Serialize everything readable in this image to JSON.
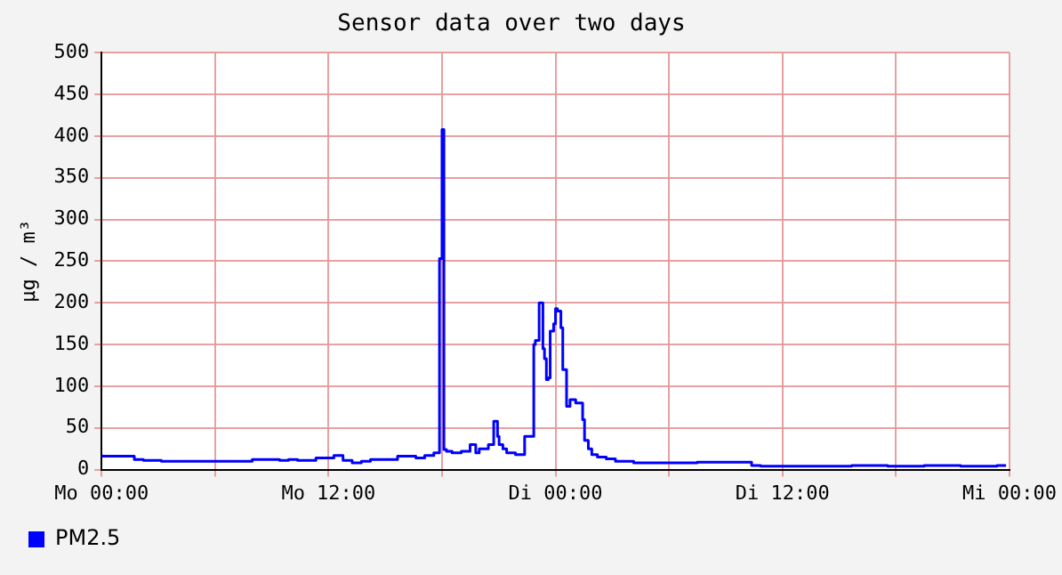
{
  "chart_data": {
    "type": "step",
    "title": "Sensor data over two days",
    "ylabel": "µg / m³",
    "xlim": [
      "--01-01T00:00",
      "--01-03T00:00"
    ],
    "xticks": [
      {
        "value": "--01-01T00:00",
        "label": "Mo 00:00"
      },
      {
        "value": "--01-01T06:00",
        "label": null
      },
      {
        "value": "--01-01T12:00",
        "label": "Mo 12:00"
      },
      {
        "value": "--01-01T18:00",
        "label": null
      },
      {
        "value": "--01-02T00:00",
        "label": "Di 00:00"
      },
      {
        "value": "--01-02T06:00",
        "label": null
      },
      {
        "value": "--01-02T12:00",
        "label": "Di 12:00"
      },
      {
        "value": "--01-02T18:00",
        "label": null
      },
      {
        "value": "--01-03T00:00",
        "label": "Mi 00:00"
      }
    ],
    "ylim": [
      0,
      500
    ],
    "yticks": [
      0,
      50,
      100,
      150,
      200,
      250,
      300,
      350,
      400,
      450,
      500
    ],
    "grid": true,
    "legend": "bottom left",
    "marker": "none",
    "line_style": "solid",
    "series": [
      {
        "name": "PM2.5",
        "color": "#0000ff",
        "x": [
          "--01-01T00:00",
          "--01-01T01:44",
          "--01-01T02:13",
          "--01-01T03:10",
          "--01-01T06:03",
          "--01-01T07:58",
          "--01-01T09:25",
          "--01-01T09:53",
          "--01-01T10:22",
          "--01-01T11:20",
          "--01-01T12:17",
          "--01-01T12:46",
          "--01-01T13:15",
          "--01-01T13:44",
          "--01-01T14:13",
          "--01-01T15:39",
          "--01-01T16:37",
          "--01-01T17:05",
          "--01-01T17:34",
          "--01-01T17:52",
          "--01-01T18:00",
          "--01-01T18:06",
          "--01-01T18:14",
          "--01-01T18:32",
          "--01-01T19:01",
          "--01-01T19:29",
          "--01-01T19:47",
          "--01-01T19:58",
          "--01-01T20:27",
          "--01-01T20:44",
          "--01-01T20:56",
          "--01-01T21:01",
          "--01-01T21:13",
          "--01-01T21:25",
          "--01-01T21:53",
          "--01-01T22:22",
          "--01-01T22:51",
          "--01-01T22:56",
          "--01-01T23:08",
          "--01-01T23:20",
          "--01-01T23:25",
          "--01-01T23:31",
          "--01-01T23:37",
          "--01-01T23:43",
          "--01-01T23:54",
          "--01-02T00:00",
          "--01-02T00:06",
          "--01-02T00:17",
          "--01-02T00:23",
          "--01-02T00:35",
          "--01-02T00:46",
          "--01-02T01:04",
          "--01-02T01:26",
          "--01-02T01:32",
          "--01-02T01:44",
          "--01-02T01:55",
          "--01-02T02:13",
          "--01-02T02:41",
          "--01-02T03:10",
          "--01-02T04:08",
          "--01-02T05:05",
          "--01-02T06:03",
          "--01-02T07:29",
          "--01-02T08:56",
          "--01-02T10:22",
          "--01-02T10:51",
          "--01-02T12:46",
          "--01-02T15:39",
          "--01-02T17:34",
          "--01-02T19:29",
          "--01-02T21:25",
          "--01-02T23:20",
          "--01-02T23:49"
        ],
        "values": [
          18,
          16,
          12,
          11,
          10,
          10,
          12,
          11,
          12,
          11,
          14,
          17,
          11,
          8,
          10,
          12,
          16,
          14,
          17,
          20,
          253,
          408,
          24,
          22,
          20,
          22,
          30,
          20,
          25,
          30,
          58,
          40,
          30,
          25,
          20,
          18,
          40,
          150,
          155,
          200,
          145,
          133,
          108,
          110,
          166,
          175,
          193,
          190,
          170,
          120,
          76,
          84,
          80,
          60,
          35,
          25,
          18,
          15,
          13,
          10,
          8,
          8,
          8,
          9,
          9,
          5,
          4,
          4,
          5,
          4,
          5,
          4,
          5
        ]
      }
    ]
  }
}
